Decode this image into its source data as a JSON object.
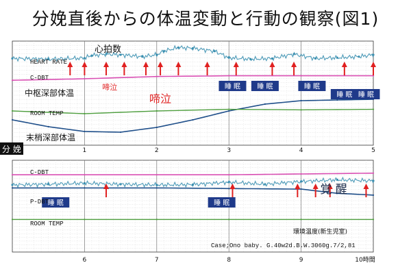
{
  "title": "分娩直後からの体温変動と行動の観察(図1)",
  "labels": {
    "heart_rate_jp": "心拍数",
    "heart_rate_en": "HEART RATE",
    "c_dbt": "C-DBT",
    "p_dbt": "P-DBT",
    "room_temp": "ROOM TEMP",
    "core_temp_jp": "中枢深部体温",
    "peripheral_temp_jp": "末梢深部体温",
    "delivery": "分 娩",
    "ambient_temp_jp": "環境温度(新生児室)",
    "case_info": "Case;Ono baby. G.40w2d.B.W.3060g.7/2,81",
    "hour_unit": "10時間"
  },
  "colors": {
    "heart_rate": "#3a8fb0",
    "core_temp": "#d94fb3",
    "peripheral_temp": "#1f4f8a",
    "room_temp": "#4e9e3e",
    "arrows": "#e02020",
    "sleep_box": "#1f3a8a"
  },
  "chart_data": [
    {
      "panel": "top",
      "type": "line",
      "x_unit": "hours after delivery",
      "x_ticks": [
        "1",
        "2",
        "3",
        "4",
        "5"
      ],
      "xlim": [
        0,
        5
      ],
      "series": [
        {
          "name": "HEART RATE",
          "x": [
            0,
            0.5,
            1,
            1.1,
            1.3,
            1.5,
            1.8,
            2.0,
            2.1,
            2.3,
            2.5,
            2.8,
            3.0,
            3.3,
            3.6,
            3.9,
            4.2,
            4.5,
            4.8,
            5.0
          ],
          "y": [
            140,
            138,
            141,
            148,
            152,
            150,
            145,
            150,
            160,
            170,
            168,
            160,
            142,
            138,
            140,
            152,
            140,
            142,
            145,
            150
          ]
        },
        {
          "name": "C-DBT",
          "x": [
            0,
            1,
            2,
            3,
            4,
            5
          ],
          "y": [
            36.9,
            37.0,
            37.15,
            37.2,
            37.2,
            37.2
          ]
        },
        {
          "name": "P-DBT",
          "x": [
            0,
            0.5,
            1.0,
            1.5,
            2.0,
            2.5,
            3.0,
            3.5,
            4.0,
            4.5,
            5.0
          ],
          "y": [
            33.5,
            32.5,
            31.8,
            31.7,
            32.4,
            33.5,
            34.8,
            35.8,
            36.3,
            36.4,
            36.5
          ]
        },
        {
          "name": "ROOM TEMP",
          "x": [
            0,
            1,
            2,
            3,
            4,
            5
          ],
          "y": [
            27.5,
            27.0,
            27.5,
            27.8,
            27.7,
            27.8
          ]
        }
      ],
      "annotations": [
        {
          "text": "啼泣",
          "x": 1.35,
          "style": "small-red"
        },
        {
          "text": "啼泣",
          "x": 2.05,
          "style": "large-red"
        },
        {
          "text": "睡 眠",
          "x": 3.05,
          "style": "sleep-box"
        },
        {
          "text": "睡 眠",
          "x": 3.5,
          "style": "sleep-box"
        },
        {
          "text": "睡 眠",
          "x": 4.15,
          "style": "sleep-box"
        },
        {
          "text": "睡 眠",
          "x": 4.6,
          "style": "sleep-box"
        },
        {
          "text": "睡 眠",
          "x": 4.9,
          "style": "sleep-box"
        }
      ],
      "arrows_x": [
        0.8,
        1.0,
        1.3,
        1.55,
        1.85,
        2.05,
        2.3,
        2.7,
        3.1,
        3.6,
        3.9,
        4.6,
        5.0
      ]
    },
    {
      "panel": "bottom",
      "type": "line",
      "x_unit": "hours after delivery",
      "x_ticks": [
        "6",
        "7",
        "8",
        "9",
        "10時間"
      ],
      "xlim": [
        5,
        10
      ],
      "series": [
        {
          "name": "HEART RATE",
          "x": [
            5,
            5.5,
            6.0,
            6.5,
            7.0,
            7.5,
            8.0,
            8.5,
            9.0,
            9.5,
            10.0
          ],
          "y": [
            140,
            142,
            145,
            142,
            140,
            141,
            148,
            142,
            150,
            155,
            152
          ]
        },
        {
          "name": "C-DBT",
          "x": [
            5,
            6,
            7,
            8,
            9,
            10
          ],
          "y": [
            37.2,
            37.2,
            37.2,
            37.2,
            37.25,
            37.3
          ]
        },
        {
          "name": "P-DBT",
          "x": [
            5,
            6,
            7,
            8,
            9,
            9.5,
            10
          ],
          "y": [
            36.5,
            36.5,
            36.5,
            36.4,
            36.3,
            35.6,
            35.3
          ]
        },
        {
          "name": "ROOM TEMP",
          "x": [
            5,
            6,
            7,
            8,
            9,
            10
          ],
          "y": [
            27.8,
            27.8,
            27.8,
            27.8,
            27.8,
            27.8
          ]
        }
      ],
      "annotations": [
        {
          "text": "睡 眠",
          "x": 5.6,
          "style": "sleep-box"
        },
        {
          "text": "睡 眠",
          "x": 7.9,
          "style": "sleep-box"
        },
        {
          "text": "覚 醒",
          "x": 9.45,
          "style": "large-dark"
        }
      ],
      "arrows_x": [
        6.3,
        8.05,
        8.95,
        9.2,
        9.4,
        9.9
      ]
    }
  ]
}
